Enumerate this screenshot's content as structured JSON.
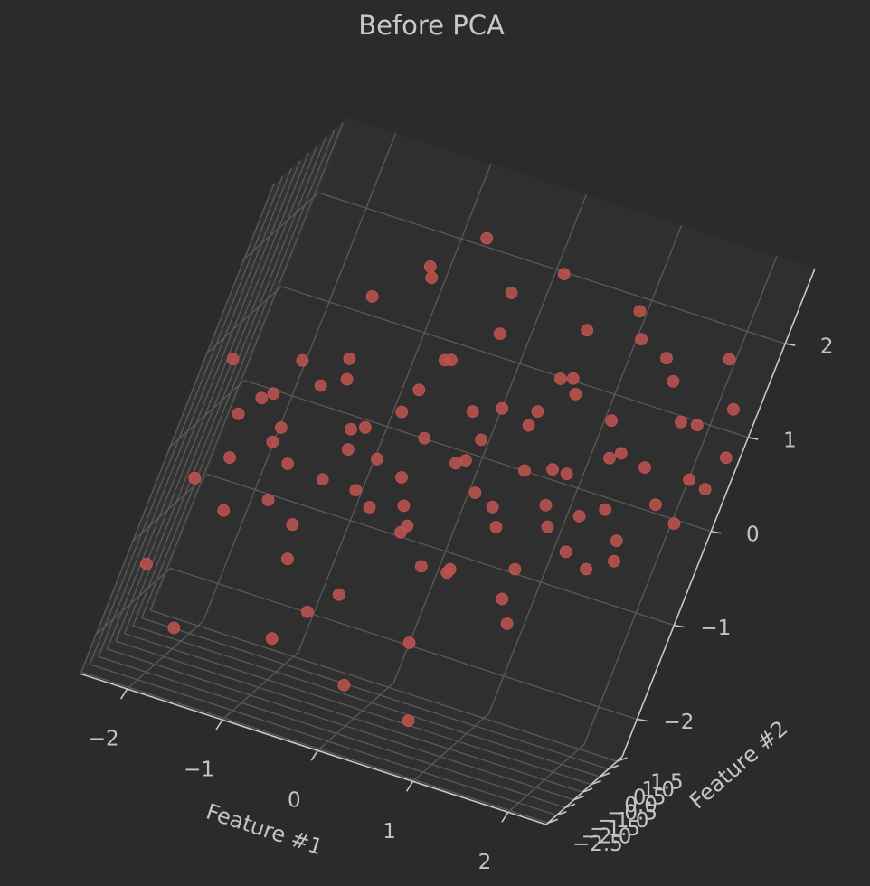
{
  "chart_data": {
    "type": "scatter",
    "title": "Before PCA",
    "xlabel": "Feature #1",
    "ylabel": "Feature #2",
    "zlabel": "",
    "xlim": [
      -2.5,
      2.4
    ],
    "ylim": [
      -2.6,
      1.8
    ],
    "zlim": [
      -2.4,
      2.8
    ],
    "x_ticks": [
      "−2",
      "−1",
      "0",
      "1",
      "2"
    ],
    "y_ticks": [
      "−2.5",
      "−2.0",
      "−1.5",
      "−1.0",
      "−0.5",
      "0.0",
      "0.5",
      "1.0",
      "1.5"
    ],
    "z_ticks": [
      "−2",
      "−1",
      "0",
      "1",
      "2"
    ],
    "grid": true,
    "projection": "3d",
    "colors": {
      "background": "#2b2b2b",
      "pane_left": "#333333",
      "pane_right": "#2f2f2f",
      "pane_floor": "#303030",
      "grid": "#5a5a5a",
      "axis": "#c8c8c8",
      "point": "#c05450"
    },
    "points": [
      [
        -2.3,
        -1.9,
        0.9
      ],
      [
        -2.1,
        -1.4,
        0.3
      ],
      [
        -1.9,
        -1.8,
        0.6
      ],
      [
        -1.7,
        -1.2,
        0.1
      ],
      [
        -2.0,
        -1.6,
        -0.1
      ],
      [
        -1.6,
        -1.9,
        0.4
      ],
      [
        -1.5,
        -0.8,
        0.7
      ],
      [
        -1.2,
        -1.3,
        -0.6
      ],
      [
        -2.2,
        -2.1,
        -0.3
      ],
      [
        -1.8,
        -2.2,
        -0.5
      ],
      [
        -1.3,
        -0.6,
        0.8
      ],
      [
        -1.0,
        -0.9,
        0.2
      ],
      [
        -1.1,
        -1.5,
        -0.9
      ],
      [
        -0.8,
        -0.7,
        -0.2
      ],
      [
        -0.9,
        -1.1,
        0.5
      ],
      [
        -0.6,
        -0.5,
        0.9
      ],
      [
        -0.7,
        -1.7,
        -1.3
      ],
      [
        -0.4,
        -0.9,
        0.1
      ],
      [
        -0.5,
        -0.2,
        1.2
      ],
      [
        -0.2,
        -0.6,
        -0.4
      ],
      [
        -0.3,
        -1.2,
        0.6
      ],
      [
        0.0,
        -0.4,
        0.3
      ],
      [
        0.1,
        -0.8,
        -0.7
      ],
      [
        0.2,
        -0.1,
        0.9
      ],
      [
        0.3,
        -0.5,
        0.1
      ],
      [
        0.4,
        -1.0,
        -0.6
      ],
      [
        0.5,
        0.0,
        0.8
      ],
      [
        0.6,
        -0.3,
        -0.2
      ],
      [
        0.7,
        -0.7,
        0.5
      ],
      [
        0.8,
        0.2,
        1.2
      ],
      [
        0.9,
        -0.1,
        -0.9
      ],
      [
        1.0,
        0.3,
        0.4
      ],
      [
        1.1,
        -0.5,
        0.0
      ],
      [
        1.2,
        0.5,
        1.0
      ],
      [
        1.3,
        0.1,
        -0.3
      ],
      [
        1.4,
        0.6,
        0.7
      ],
      [
        1.5,
        0.2,
        0.2
      ],
      [
        1.6,
        0.8,
        1.5
      ],
      [
        1.7,
        0.4,
        -0.1
      ],
      [
        1.8,
        1.0,
        1.1
      ],
      [
        1.9,
        0.7,
        0.3
      ],
      [
        2.0,
        1.2,
        1.8
      ],
      [
        2.1,
        0.9,
        0.6
      ],
      [
        2.2,
        1.4,
        1.3
      ],
      [
        -1.4,
        -0.3,
        1.6
      ],
      [
        -1.0,
        0.0,
        2.0
      ],
      [
        -0.6,
        0.2,
        2.4
      ],
      [
        -0.2,
        0.5,
        1.9
      ],
      [
        0.2,
        0.7,
        2.2
      ],
      [
        0.6,
        0.9,
        1.7
      ],
      [
        1.0,
        1.1,
        2.0
      ],
      [
        1.4,
        1.3,
        1.6
      ],
      [
        -1.6,
        -0.5,
        -0.6
      ],
      [
        -1.2,
        -0.2,
        -0.3
      ],
      [
        -0.8,
        0.1,
        0.0
      ],
      [
        -0.4,
        0.3,
        -0.4
      ],
      [
        0.0,
        0.4,
        0.2
      ],
      [
        0.4,
        0.6,
        -0.2
      ],
      [
        0.8,
        0.8,
        0.3
      ],
      [
        1.2,
        1.0,
        -0.1
      ],
      [
        -1.9,
        -0.9,
        0.5
      ],
      [
        -1.5,
        -1.0,
        -0.1
      ],
      [
        -1.1,
        -0.4,
        0.3
      ],
      [
        -0.7,
        -0.3,
        0.6
      ],
      [
        -0.3,
        0.0,
        -0.6
      ],
      [
        0.1,
        0.1,
        0.5
      ],
      [
        0.5,
        0.3,
        0.9
      ],
      [
        0.9,
        0.5,
        0.0
      ],
      [
        1.3,
        0.7,
        0.6
      ],
      [
        1.7,
        0.9,
        -0.4
      ],
      [
        2.1,
        1.1,
        0.1
      ],
      [
        2.3,
        1.5,
        0.8
      ],
      [
        -2.3,
        -2.4,
        -1.2
      ],
      [
        -1.8,
        -2.5,
        -1.7
      ],
      [
        -0.9,
        -2.0,
        -1.6
      ],
      [
        -0.1,
        -1.6,
        -1.9
      ],
      [
        0.6,
        -1.3,
        -2.1
      ],
      [
        -0.5,
        -1.4,
        -1.1
      ],
      [
        0.3,
        -1.1,
        -1.4
      ],
      [
        1.1,
        -0.7,
        -1.0
      ],
      [
        -1.0,
        0.5,
        1.8
      ],
      [
        -0.2,
        0.9,
        1.4
      ],
      [
        0.5,
        1.2,
        1.1
      ],
      [
        1.6,
        1.3,
        0.5
      ],
      [
        1.9,
        1.6,
        1.0
      ],
      [
        2.2,
        1.7,
        0.4
      ],
      [
        -0.4,
        -0.6,
        1.3
      ],
      [
        0.3,
        -0.2,
        -0.8
      ],
      [
        0.9,
        0.0,
        -0.6
      ],
      [
        1.5,
        0.6,
        -0.5
      ],
      [
        -1.7,
        -1.4,
        1.0
      ],
      [
        -0.6,
        -0.8,
        -0.3
      ],
      [
        0.7,
        0.4,
        1.3
      ],
      [
        1.2,
        0.3,
        1.9
      ],
      [
        -1.3,
        -1.1,
        1.1
      ],
      [
        0.0,
        -0.7,
        0.9
      ]
    ]
  }
}
